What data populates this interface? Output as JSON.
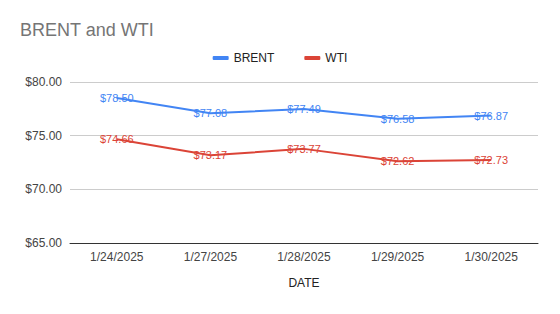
{
  "chart_data": {
    "type": "line",
    "title": "BRENT and WTI",
    "x_label": "DATE",
    "categories": [
      "1/24/2025",
      "1/27/2025",
      "1/28/2025",
      "1/29/2025",
      "1/30/2025"
    ],
    "series": [
      {
        "name": "BRENT",
        "color": "#4285f4",
        "values": [
          78.5,
          77.08,
          77.49,
          76.58,
          76.87
        ],
        "value_labels": [
          "$78.50",
          "$77.08",
          "$77.49",
          "$76.58",
          "$76.87"
        ]
      },
      {
        "name": "WTI",
        "color": "#db4437",
        "values": [
          74.66,
          73.17,
          73.77,
          72.62,
          72.73
        ],
        "value_labels": [
          "$74.66",
          "$73.17",
          "$73.77",
          "$72.62",
          "$72.73"
        ]
      }
    ],
    "ylim": [
      65,
      80
    ],
    "yticks": [
      {
        "value": 65,
        "label": "$65.00"
      },
      {
        "value": 70,
        "label": "$70.00"
      },
      {
        "value": 75,
        "label": "$75.00"
      },
      {
        "value": 80,
        "label": "$80.00"
      }
    ],
    "grid": true,
    "legend": "top",
    "data_labels": true
  }
}
